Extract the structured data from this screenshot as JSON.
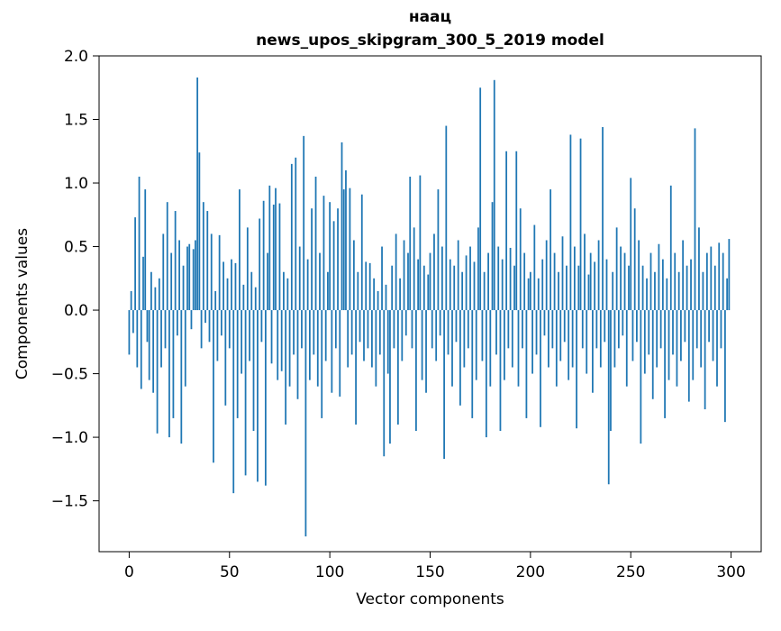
{
  "figure": {
    "background": "#ffffff",
    "bar_color": "#1f77b4"
  },
  "chart_data": {
    "type": "bar",
    "title": "наац",
    "subtitle": "news_upos_skipgram_300_5_2019 model",
    "xlabel": "Vector components",
    "ylabel": "Components values",
    "grid": false,
    "legend": null,
    "xlim": [
      -15,
      315
    ],
    "ylim": [
      -1.9,
      2.0
    ],
    "x_ticks": [
      {
        "v": 0,
        "label": "0"
      },
      {
        "v": 50,
        "label": "50"
      },
      {
        "v": 100,
        "label": "100"
      },
      {
        "v": 150,
        "label": "150"
      },
      {
        "v": 200,
        "label": "200"
      },
      {
        "v": 250,
        "label": "250"
      },
      {
        "v": 300,
        "label": "300"
      }
    ],
    "y_ticks": [
      {
        "v": -1.5,
        "label": "−1.5"
      },
      {
        "v": -1.0,
        "label": "−1.0"
      },
      {
        "v": -0.5,
        "label": "−0.5"
      },
      {
        "v": 0.0,
        "label": "0.0"
      },
      {
        "v": 0.5,
        "label": "0.5"
      },
      {
        "v": 1.0,
        "label": "1.0"
      },
      {
        "v": 1.5,
        "label": "1.5"
      },
      {
        "v": 2.0,
        "label": "2.0"
      }
    ],
    "values": [
      -0.35,
      0.15,
      -0.18,
      0.73,
      -0.45,
      1.05,
      -0.62,
      0.42,
      0.95,
      -0.25,
      -0.55,
      0.3,
      -0.65,
      0.18,
      -0.97,
      0.25,
      -0.45,
      0.6,
      -0.3,
      0.85,
      -1.0,
      0.45,
      -0.85,
      0.78,
      -0.2,
      0.55,
      -1.05,
      0.35,
      -0.6,
      0.5,
      0.52,
      -0.15,
      0.48,
      0.55,
      1.83,
      1.24,
      -0.3,
      0.85,
      -0.1,
      0.78,
      -0.25,
      0.6,
      -1.2,
      0.15,
      -0.4,
      0.59,
      -0.2,
      0.38,
      -0.75,
      0.25,
      -0.3,
      0.4,
      -1.44,
      0.37,
      -0.85,
      0.95,
      -0.5,
      0.2,
      -1.3,
      0.65,
      -0.4,
      0.3,
      -0.95,
      0.18,
      -1.35,
      0.72,
      -0.25,
      0.86,
      -1.38,
      0.45,
      0.98,
      -0.42,
      0.83,
      0.96,
      -0.55,
      0.84,
      -0.48,
      0.3,
      -0.9,
      0.25,
      -0.6,
      1.15,
      -0.35,
      1.2,
      -0.7,
      0.5,
      -0.3,
      1.37,
      -1.78,
      0.4,
      -0.55,
      0.8,
      -0.35,
      1.05,
      -0.6,
      0.45,
      -0.85,
      0.9,
      -0.4,
      0.3,
      0.85,
      -0.65,
      0.7,
      -0.3,
      0.8,
      -0.68,
      1.32,
      0.95,
      1.1,
      -0.45,
      0.96,
      -0.35,
      0.55,
      -0.9,
      0.3,
      -0.25,
      0.91,
      -0.4,
      0.38,
      -0.3,
      0.37,
      -0.45,
      0.25,
      -0.6,
      0.15,
      -0.35,
      0.5,
      -1.15,
      0.2,
      -0.5,
      -1.05,
      0.35,
      -0.3,
      0.6,
      -0.9,
      0.25,
      -0.4,
      0.55,
      -0.2,
      0.45,
      1.05,
      -0.3,
      0.65,
      -0.95,
      0.4,
      1.06,
      -0.55,
      0.35,
      -0.65,
      0.28,
      0.45,
      -0.3,
      0.6,
      -0.4,
      0.95,
      -0.2,
      0.5,
      -1.17,
      1.45,
      -0.35,
      0.4,
      -0.6,
      0.35,
      -0.25,
      0.55,
      -0.75,
      0.3,
      -0.45,
      0.43,
      -0.3,
      0.5,
      -0.85,
      0.38,
      -0.55,
      0.65,
      1.75,
      -0.4,
      0.3,
      -1.0,
      0.45,
      -0.6,
      0.85,
      1.81,
      -0.35,
      0.5,
      -0.95,
      0.4,
      -0.55,
      1.25,
      -0.3,
      0.49,
      -0.45,
      0.35,
      1.25,
      -0.6,
      0.8,
      -0.3,
      0.45,
      -0.85,
      0.25,
      0.3,
      -0.5,
      0.67,
      -0.35,
      0.25,
      -0.92,
      0.4,
      -0.2,
      0.55,
      -0.45,
      0.95,
      -0.3,
      0.45,
      -0.6,
      0.3,
      -0.4,
      0.58,
      -0.25,
      0.35,
      -0.55,
      1.38,
      -0.45,
      0.5,
      -0.93,
      0.35,
      1.35,
      -0.3,
      0.6,
      -0.5,
      0.28,
      0.45,
      -0.65,
      0.38,
      -0.3,
      0.55,
      -0.45,
      1.44,
      -0.25,
      0.4,
      -1.37,
      -0.95,
      0.3,
      -0.45,
      0.65,
      -0.3,
      0.5,
      -0.2,
      0.45,
      -0.6,
      0.35,
      1.04,
      -0.4,
      0.8,
      -0.25,
      0.55,
      -1.05,
      0.35,
      -0.5,
      0.25,
      -0.35,
      0.45,
      -0.7,
      0.3,
      -0.45,
      0.52,
      -0.3,
      0.4,
      -0.85,
      0.25,
      -0.55,
      0.98,
      -0.35,
      0.45,
      -0.6,
      0.3,
      -0.4,
      0.55,
      -0.25,
      0.35,
      -0.72,
      0.4,
      -0.55,
      1.43,
      -0.3,
      0.65,
      -0.45,
      0.3,
      -0.78,
      0.45,
      -0.25,
      0.5,
      -0.4,
      0.35,
      -0.6,
      0.53,
      -0.3,
      0.45,
      -0.88,
      0.25,
      0.56
    ]
  }
}
